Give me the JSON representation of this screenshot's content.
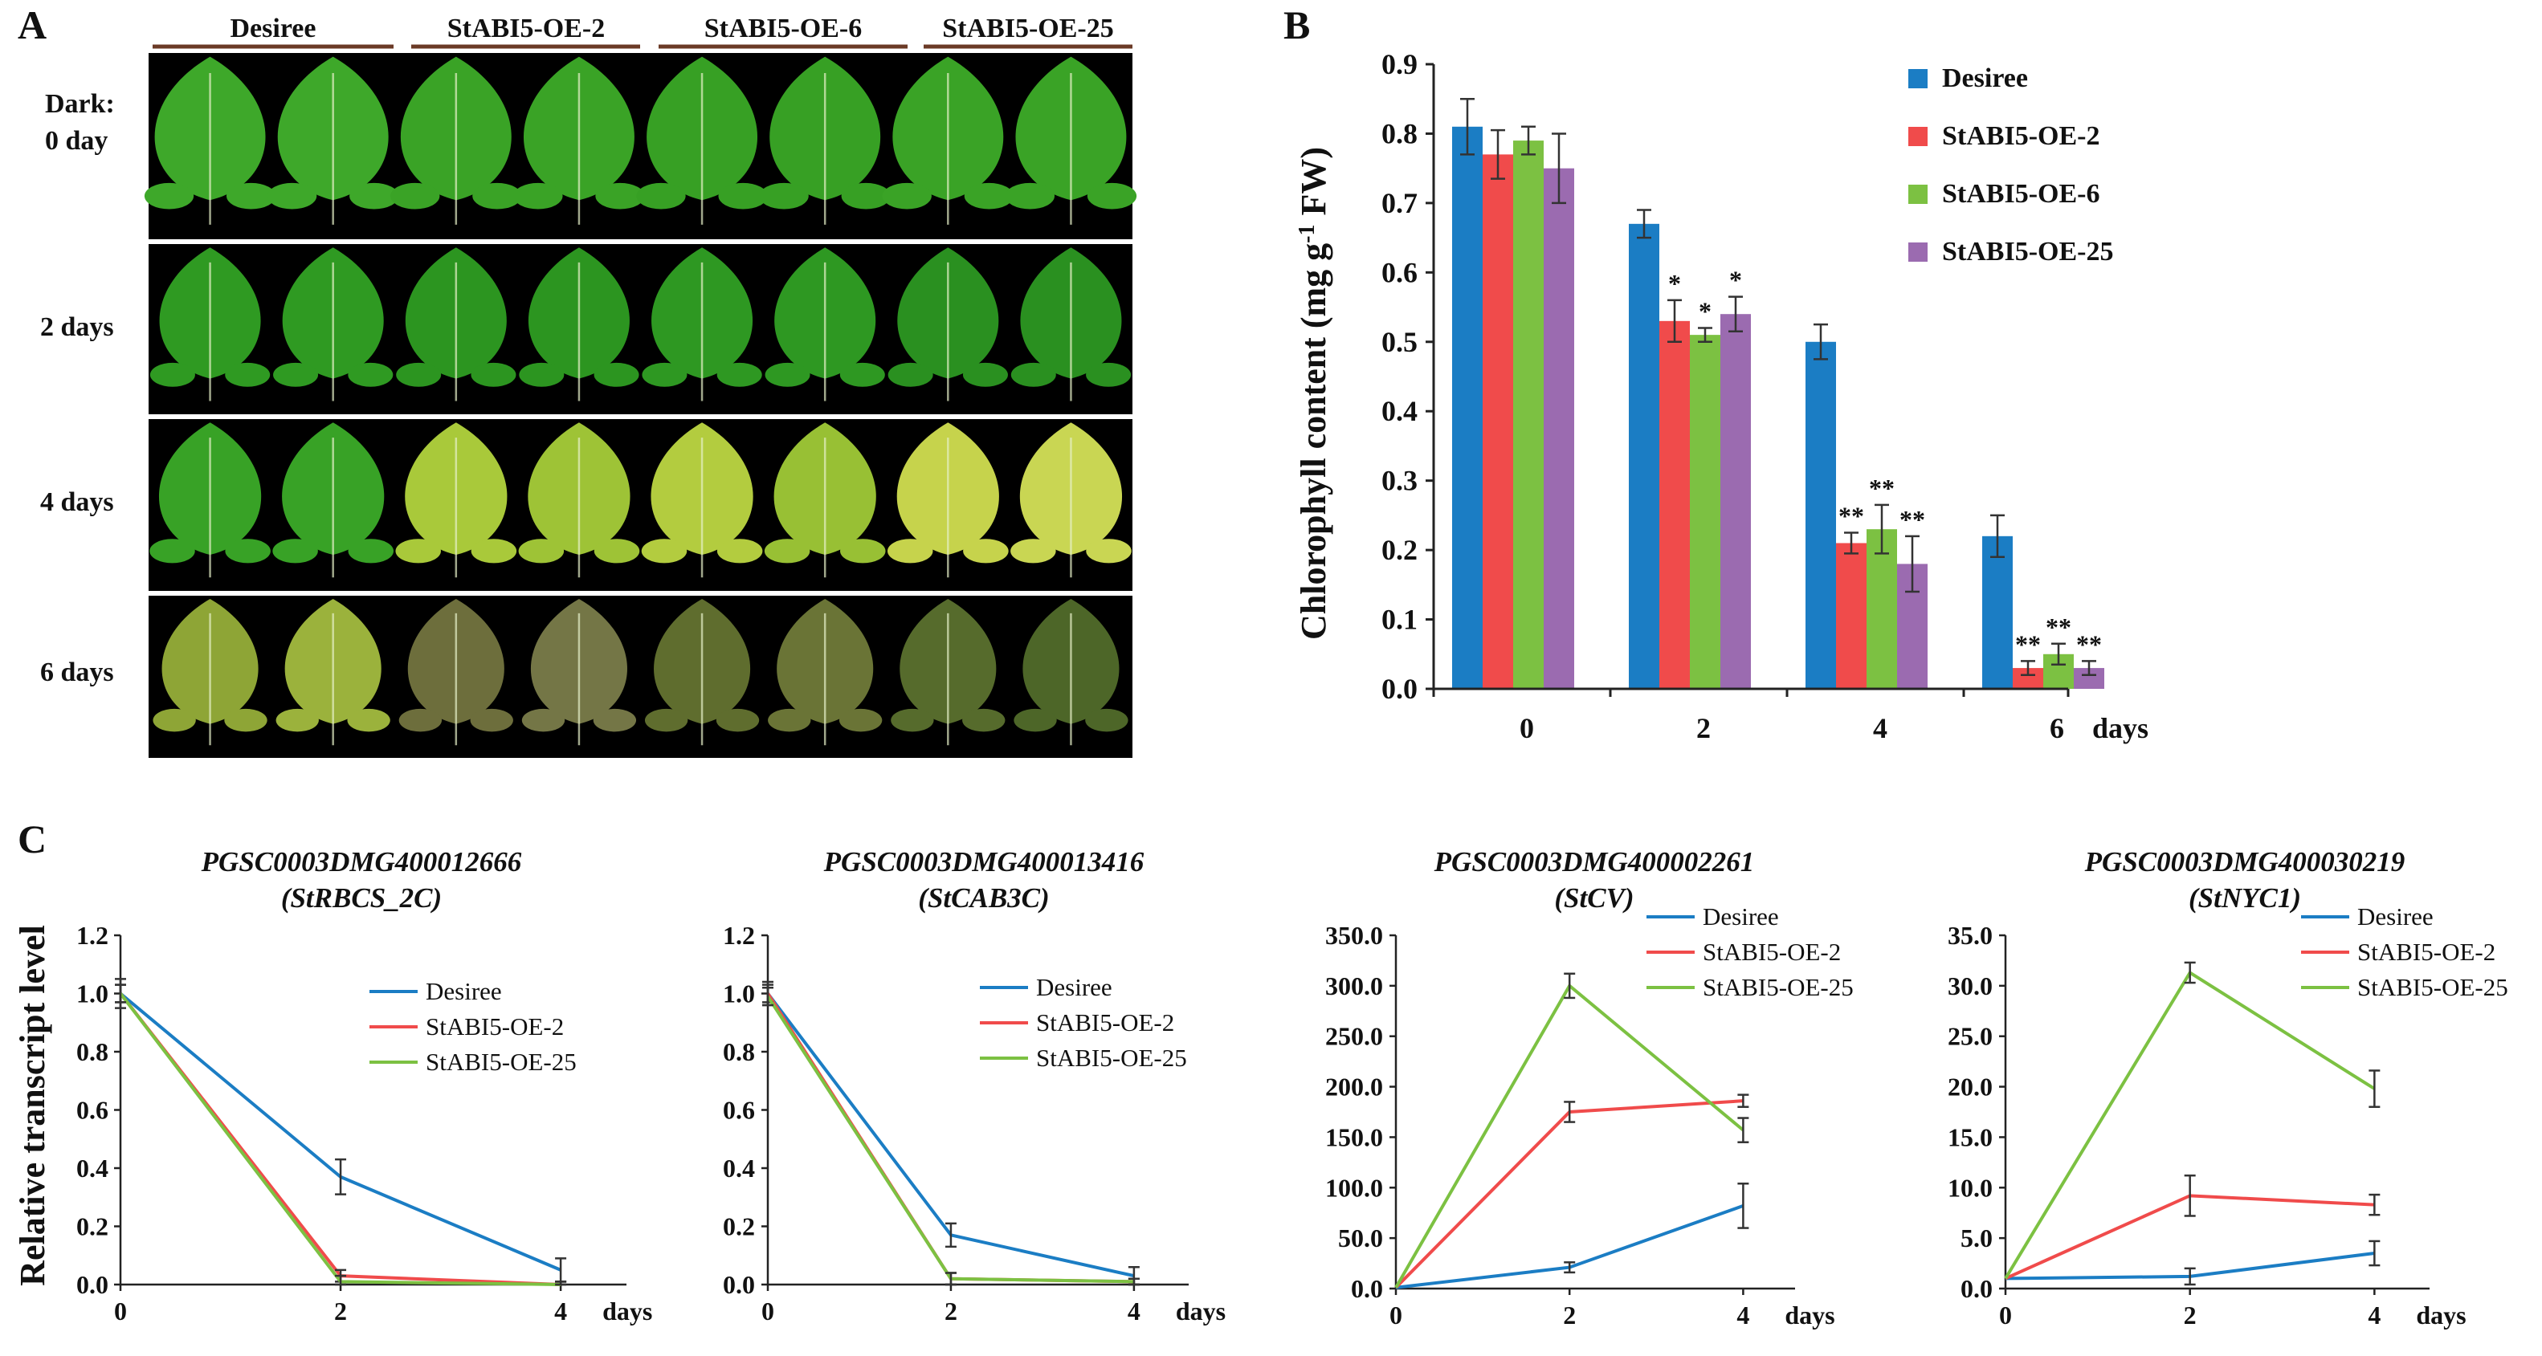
{
  "panel_letters": [
    "A",
    "B",
    "C"
  ],
  "panel_a": {
    "genotypes": [
      "Desiree",
      "StABI5-OE-2",
      "StABI5-OE-6",
      "StABI5-OE-25"
    ],
    "row_labels": [
      {
        "line1": "Dark:",
        "line2": "0 day"
      },
      {
        "line1": "2 days",
        "line2": ""
      },
      {
        "line1": "4 days",
        "line2": ""
      },
      {
        "line1": "6 days",
        "line2": ""
      }
    ],
    "leaf_colors": [
      [
        "#3ea82a",
        "#3ea82a",
        "#3aa326",
        "#3aa326",
        "#37a024",
        "#37a024",
        "#3aa326",
        "#3aa326"
      ],
      [
        "#2f9a22",
        "#2f9a22",
        "#2c9520",
        "#2c9520",
        "#2e9822",
        "#2e9822",
        "#2a9020",
        "#2a9020"
      ],
      [
        "#38a226",
        "#38a226",
        "#a9c93a",
        "#9ec336",
        "#b3cc3f",
        "#98c034",
        "#c6d34c",
        "#c9d653"
      ],
      [
        "#8ea536",
        "#9bb23c",
        "#6d6e3c",
        "#747646",
        "#5f6d2e",
        "#6a7436",
        "#566b2c",
        "#4d6628"
      ]
    ]
  },
  "chart_data": [
    {
      "panel": "B",
      "type": "bar",
      "title": "",
      "xlabel": "days",
      "ylabel": "Chlorophyll content (mg g-1 FW)",
      "ylabel_parts": {
        "pre": "Chlorophyll content (mg g",
        "sup": "-1",
        "post": " FW)"
      },
      "categories": [
        "0",
        "2",
        "4",
        "6"
      ],
      "ylim": [
        0,
        0.9
      ],
      "yticks": [
        "0.0",
        "0.1",
        "0.2",
        "0.3",
        "0.4",
        "0.5",
        "0.6",
        "0.7",
        "0.8",
        "0.9"
      ],
      "series": [
        {
          "name": "Desiree",
          "color": "#1b7dc4",
          "values": [
            0.81,
            0.67,
            0.5,
            0.22
          ],
          "errors": [
            0.04,
            0.02,
            0.025,
            0.03
          ],
          "sig": [
            "",
            "",
            "",
            ""
          ]
        },
        {
          "name": "StABI5-OE-2",
          "color": "#f04b4b",
          "values": [
            0.77,
            0.53,
            0.21,
            0.03
          ],
          "errors": [
            0.035,
            0.03,
            0.015,
            0.01
          ],
          "sig": [
            "",
            "*",
            "**",
            "**"
          ]
        },
        {
          "name": "StABI5-OE-6",
          "color": "#7cc142",
          "values": [
            0.79,
            0.51,
            0.23,
            0.05
          ],
          "errors": [
            0.02,
            0.01,
            0.035,
            0.015
          ],
          "sig": [
            "",
            "*",
            "**",
            "**"
          ]
        },
        {
          "name": "StABI5-OE-25",
          "color": "#9b6bb0",
          "values": [
            0.75,
            0.54,
            0.18,
            0.03
          ],
          "errors": [
            0.05,
            0.025,
            0.04,
            0.01
          ],
          "sig": [
            "",
            "*",
            "**",
            "**"
          ]
        }
      ],
      "legend": "top-right"
    },
    {
      "panel": "C",
      "type": "line",
      "title": "PGSC0003DMG400012666",
      "subtitle": "(StRBCS_2C)",
      "xlabel": "days",
      "ylabel": "Relative transcript level",
      "x": [
        0,
        2,
        4
      ],
      "xticks": [
        "0",
        "2",
        "4"
      ],
      "ylim": [
        0,
        1.2
      ],
      "yticks": [
        "0.0",
        "0.2",
        "0.4",
        "0.6",
        "0.8",
        "1.0",
        "1.2"
      ],
      "series": [
        {
          "name": "Desiree",
          "color": "#1b7dc4",
          "values": [
            1.0,
            0.37,
            0.05
          ],
          "errors": [
            0.05,
            0.06,
            0.04
          ]
        },
        {
          "name": "StABI5-OE-2",
          "color": "#f04b4b",
          "values": [
            1.0,
            0.03,
            0.0
          ],
          "errors": [
            0.03,
            0.02,
            0.01
          ]
        },
        {
          "name": "StABI5-OE-25",
          "color": "#7cc142",
          "values": [
            1.0,
            0.01,
            0.0
          ],
          "errors": [
            0.03,
            0.02,
            0.01
          ]
        }
      ]
    },
    {
      "panel": "C",
      "type": "line",
      "title": "PGSC0003DMG400013416",
      "subtitle": "(StCAB3C)",
      "xlabel": "days",
      "ylabel": "",
      "x": [
        0,
        2,
        4
      ],
      "xticks": [
        "0",
        "2",
        "4"
      ],
      "ylim": [
        0,
        1.2
      ],
      "yticks": [
        "0.0",
        "0.2",
        "0.4",
        "0.6",
        "0.8",
        "1.0",
        "1.2"
      ],
      "series": [
        {
          "name": "Desiree",
          "color": "#1b7dc4",
          "values": [
            1.0,
            0.17,
            0.03
          ],
          "errors": [
            0.04,
            0.04,
            0.03
          ]
        },
        {
          "name": "StABI5-OE-2",
          "color": "#f04b4b",
          "values": [
            1.0,
            0.02,
            0.01
          ],
          "errors": [
            0.03,
            0.02,
            0.01
          ]
        },
        {
          "name": "StABI5-OE-25",
          "color": "#7cc142",
          "values": [
            0.99,
            0.02,
            0.01
          ],
          "errors": [
            0.03,
            0.02,
            0.01
          ]
        }
      ]
    },
    {
      "panel": "C",
      "type": "line",
      "title": "PGSC0003DMG400002261",
      "subtitle": "(StCV)",
      "xlabel": "days",
      "ylabel": "",
      "x": [
        0,
        2,
        4
      ],
      "xticks": [
        "0",
        "2",
        "4"
      ],
      "ylim": [
        0,
        350
      ],
      "yticks": [
        "0.0",
        "50.0",
        "100.0",
        "150.0",
        "200.0",
        "250.0",
        "300.0",
        "350.0"
      ],
      "series": [
        {
          "name": "Desiree",
          "color": "#1b7dc4",
          "values": [
            1,
            21,
            82
          ],
          "errors": [
            0,
            5,
            22
          ]
        },
        {
          "name": "StABI5-OE-2",
          "color": "#f04b4b",
          "values": [
            1,
            175,
            186
          ],
          "errors": [
            0,
            10,
            6
          ]
        },
        {
          "name": "StABI5-OE-25",
          "color": "#7cc142",
          "values": [
            1,
            300,
            157
          ],
          "errors": [
            0,
            12,
            12
          ]
        }
      ]
    },
    {
      "panel": "C",
      "type": "line",
      "title": "PGSC0003DMG400030219",
      "subtitle": "(StNYC1)",
      "xlabel": "days",
      "ylabel": "",
      "x": [
        0,
        2,
        4
      ],
      "xticks": [
        "0",
        "2",
        "4"
      ],
      "ylim": [
        0,
        35
      ],
      "yticks": [
        "0.0",
        "5.0",
        "10.0",
        "15.0",
        "20.0",
        "25.0",
        "30.0",
        "35.0"
      ],
      "series": [
        {
          "name": "Desiree",
          "color": "#1b7dc4",
          "values": [
            1,
            1.2,
            3.5
          ],
          "errors": [
            0,
            0.8,
            1.2
          ]
        },
        {
          "name": "StABI5-OE-2",
          "color": "#f04b4b",
          "values": [
            1,
            9.2,
            8.3
          ],
          "errors": [
            0,
            2.0,
            1.0
          ]
        },
        {
          "name": "StABI5-OE-25",
          "color": "#7cc142",
          "values": [
            1,
            31.3,
            19.8
          ],
          "errors": [
            0,
            1.0,
            1.8
          ]
        }
      ]
    }
  ]
}
